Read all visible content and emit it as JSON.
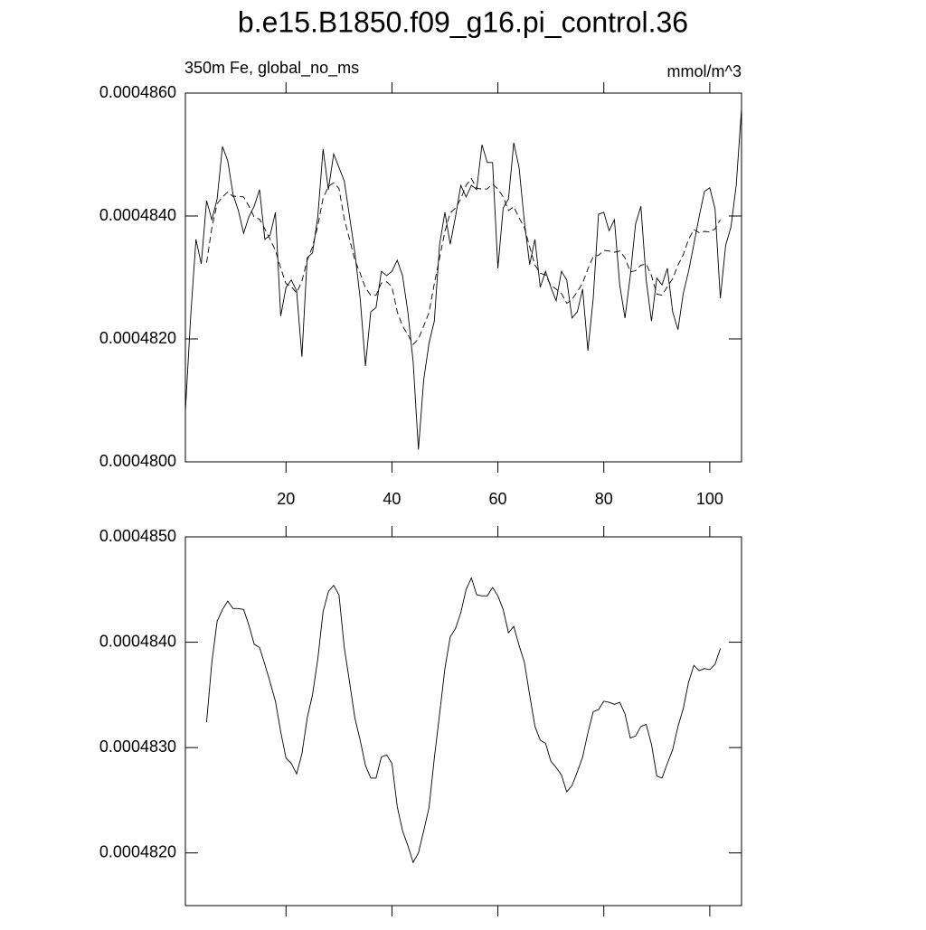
{
  "chart_data": [
    {
      "type": "line",
      "title": "b.e15.B1850.f09_g16.pi_control.36",
      "subtitle": "350m Fe, global_no_ms",
      "units": "mmol/m^3",
      "xlim": [
        1,
        106
      ],
      "xticks": [
        20,
        40,
        60,
        80,
        100
      ],
      "ylim": [
        0.00048,
        0.000486
      ],
      "yticks": [
        {
          "value": 0.00048,
          "label": "0.0004800"
        },
        {
          "value": 0.000482,
          "label": "0.0004820"
        },
        {
          "value": 0.000484,
          "label": "0.0004840"
        },
        {
          "value": 0.000486,
          "label": "0.0004860"
        }
      ],
      "series": [
        {
          "line_style": "solid",
          "color": "#000000",
          "x": [
            1,
            2,
            3,
            4,
            5,
            6,
            7,
            8,
            9,
            10,
            11,
            12,
            13,
            14,
            15,
            16,
            17,
            18,
            19,
            20,
            21,
            22,
            23,
            24,
            25,
            26,
            27,
            28,
            29,
            30,
            31,
            32,
            33,
            34,
            35,
            36,
            37,
            38,
            39,
            40,
            41,
            42,
            43,
            44,
            45,
            46,
            47,
            48,
            49,
            50,
            51,
            52,
            53,
            54,
            55,
            56,
            57,
            58,
            59,
            60,
            61,
            62,
            63,
            64,
            65,
            66,
            67,
            68,
            69,
            70,
            71,
            72,
            73,
            74,
            75,
            76,
            77,
            78,
            79,
            80,
            81,
            82,
            83,
            84,
            85,
            86,
            87,
            88,
            89,
            90,
            91,
            92,
            93,
            94,
            95,
            96,
            97,
            98,
            99,
            100,
            101,
            102,
            103,
            104,
            105,
            106
          ],
          "values": [
            0.00048082,
            0.00048237,
            0.00048362,
            0.00048322,
            0.00048425,
            0.00048394,
            0.00048428,
            0.00048513,
            0.0004849,
            0.00048435,
            0.00048409,
            0.00048372,
            0.00048399,
            0.00048416,
            0.00048443,
            0.00048362,
            0.00048369,
            0.00048406,
            0.00048237,
            0.00048284,
            0.00048296,
            0.00048278,
            0.00048171,
            0.00048332,
            0.0004834,
            0.00048399,
            0.00048509,
            0.00048443,
            0.00048501,
            0.00048479,
            0.00048457,
            0.00048399,
            0.0004834,
            0.00048266,
            0.00048156,
            0.00048244,
            0.00048251,
            0.0004831,
            0.00048303,
            0.0004831,
            0.00048328,
            0.00048303,
            0.00048244,
            0.00048163,
            0.0004802,
            0.00048134,
            0.00048193,
            0.00048229,
            0.00048354,
            0.00048406,
            0.00048354,
            0.00048399,
            0.0004845,
            0.00048431,
            0.0004845,
            0.00048443,
            0.00048516,
            0.00048487,
            0.00048487,
            0.00048315,
            0.00048413,
            0.00048428,
            0.00048519,
            0.00048479,
            0.00048391,
            0.00048321,
            0.00048362,
            0.00048284,
            0.0004831,
            0.00048284,
            0.00048262,
            0.0004831,
            0.00048296,
            0.00048234,
            0.00048244,
            0.00048281,
            0.00048181,
            0.00048266,
            0.00048403,
            0.00048406,
            0.00048376,
            0.00048394,
            0.00048288,
            0.00048234,
            0.00048303,
            0.00048387,
            0.00048416,
            0.00048296,
            0.00048229,
            0.00048299,
            0.00048288,
            0.00048315,
            0.00048244,
            0.00048215,
            0.00048274,
            0.0004831,
            0.00048354,
            0.00048399,
            0.0004844,
            0.00048446,
            0.00048412,
            0.00048266,
            0.00048352,
            0.00048382,
            0.0004845,
            0.00048575
          ]
        },
        {
          "line_style": "dashed",
          "color": "#000000",
          "x": [
            5,
            6,
            7,
            8,
            9,
            10,
            11,
            12,
            13,
            14,
            15,
            16,
            17,
            18,
            19,
            20,
            21,
            22,
            23,
            24,
            25,
            26,
            27,
            28,
            29,
            30,
            31,
            32,
            33,
            34,
            35,
            36,
            37,
            38,
            39,
            40,
            41,
            42,
            43,
            44,
            45,
            46,
            47,
            48,
            49,
            50,
            51,
            52,
            53,
            54,
            55,
            56,
            57,
            58,
            59,
            60,
            61,
            62,
            63,
            64,
            65,
            66,
            67,
            68,
            69,
            70,
            71,
            72,
            73,
            74,
            75,
            76,
            77,
            78,
            79,
            80,
            81,
            82,
            83,
            84,
            85,
            86,
            87,
            88,
            89,
            90,
            91,
            92,
            93,
            94,
            95,
            96,
            97,
            98,
            99,
            100,
            101,
            102
          ],
          "values": [
            0.00048324,
            0.00048381,
            0.0004842,
            0.00048431,
            0.00048439,
            0.00048432,
            0.00048432,
            0.00048431,
            0.00048416,
            0.00048398,
            0.00048395,
            0.00048379,
            0.00048362,
            0.00048344,
            0.00048315,
            0.0004829,
            0.00048285,
            0.00048275,
            0.00048294,
            0.00048328,
            0.0004835,
            0.00048384,
            0.00048429,
            0.00048448,
            0.00048454,
            0.00048445,
            0.00048395,
            0.00048362,
            0.00048328,
            0.00048307,
            0.00048283,
            0.00048271,
            0.00048271,
            0.00048291,
            0.00048293,
            0.00048285,
            0.00048244,
            0.00048221,
            0.00048207,
            0.00048191,
            0.000482,
            0.00048221,
            0.00048243,
            0.0004829,
            0.00048332,
            0.00048375,
            0.00048405,
            0.00048413,
            0.00048428,
            0.0004845,
            0.00048461,
            0.00048445,
            0.00048444,
            0.00048444,
            0.00048452,
            0.00048444,
            0.00048431,
            0.00048409,
            0.00048415,
            0.00048397,
            0.00048381,
            0.0004835,
            0.0004832,
            0.00048307,
            0.00048304,
            0.00048287,
            0.00048281,
            0.00048274,
            0.00048258,
            0.00048264,
            0.00048277,
            0.00048291,
            0.00048314,
            0.00048334,
            0.00048336,
            0.00048344,
            0.00048343,
            0.00048341,
            0.00048343,
            0.00048332,
            0.00048309,
            0.00048311,
            0.0004832,
            0.00048322,
            0.00048303,
            0.00048273,
            0.00048271,
            0.00048285,
            0.00048298,
            0.0004832,
            0.00048337,
            0.00048362,
            0.00048378,
            0.00048373,
            0.00048375,
            0.00048374,
            0.00048379,
            0.00048394
          ]
        }
      ]
    },
    {
      "type": "line",
      "xlim": [
        1,
        106
      ],
      "xticks": [
        20,
        40,
        60,
        80,
        100
      ],
      "ylim": [
        0.0004815,
        0.000485
      ],
      "yticks": [
        {
          "value": 0.000482,
          "label": "0.0004820"
        },
        {
          "value": 0.000483,
          "label": "0.0004830"
        },
        {
          "value": 0.000484,
          "label": "0.0004840"
        },
        {
          "value": 0.000485,
          "label": "0.0004850"
        }
      ],
      "show_xtick_labels": false,
      "series": [
        {
          "line_style": "solid",
          "color": "#000000",
          "x": [
            5,
            6,
            7,
            8,
            9,
            10,
            11,
            12,
            13,
            14,
            15,
            16,
            17,
            18,
            19,
            20,
            21,
            22,
            23,
            24,
            25,
            26,
            27,
            28,
            29,
            30,
            31,
            32,
            33,
            34,
            35,
            36,
            37,
            38,
            39,
            40,
            41,
            42,
            43,
            44,
            45,
            46,
            47,
            48,
            49,
            50,
            51,
            52,
            53,
            54,
            55,
            56,
            57,
            58,
            59,
            60,
            61,
            62,
            63,
            64,
            65,
            66,
            67,
            68,
            69,
            70,
            71,
            72,
            73,
            74,
            75,
            76,
            77,
            78,
            79,
            80,
            81,
            82,
            83,
            84,
            85,
            86,
            87,
            88,
            89,
            90,
            91,
            92,
            93,
            94,
            95,
            96,
            97,
            98,
            99,
            100,
            101,
            102
          ],
          "values": [
            0.00048324,
            0.00048381,
            0.0004842,
            0.00048431,
            0.00048439,
            0.00048432,
            0.00048432,
            0.00048431,
            0.00048416,
            0.00048398,
            0.00048395,
            0.00048379,
            0.00048362,
            0.00048344,
            0.00048315,
            0.0004829,
            0.00048285,
            0.00048275,
            0.00048294,
            0.00048328,
            0.0004835,
            0.00048384,
            0.00048429,
            0.00048448,
            0.00048454,
            0.00048445,
            0.00048395,
            0.00048362,
            0.00048328,
            0.00048307,
            0.00048283,
            0.00048271,
            0.00048271,
            0.00048291,
            0.00048293,
            0.00048285,
            0.00048244,
            0.00048221,
            0.00048207,
            0.00048191,
            0.000482,
            0.00048221,
            0.00048243,
            0.0004829,
            0.00048332,
            0.00048375,
            0.00048405,
            0.00048413,
            0.00048428,
            0.0004845,
            0.00048461,
            0.00048445,
            0.00048444,
            0.00048444,
            0.00048452,
            0.00048444,
            0.00048431,
            0.00048409,
            0.00048415,
            0.00048397,
            0.00048381,
            0.0004835,
            0.0004832,
            0.00048307,
            0.00048304,
            0.00048287,
            0.00048281,
            0.00048274,
            0.00048258,
            0.00048264,
            0.00048277,
            0.00048291,
            0.00048314,
            0.00048334,
            0.00048336,
            0.00048344,
            0.00048343,
            0.00048341,
            0.00048343,
            0.00048332,
            0.00048309,
            0.00048311,
            0.0004832,
            0.00048322,
            0.00048303,
            0.00048273,
            0.00048271,
            0.00048285,
            0.00048298,
            0.0004832,
            0.00048337,
            0.00048362,
            0.00048378,
            0.00048373,
            0.00048375,
            0.00048374,
            0.00048379,
            0.00048394
          ]
        }
      ]
    }
  ]
}
